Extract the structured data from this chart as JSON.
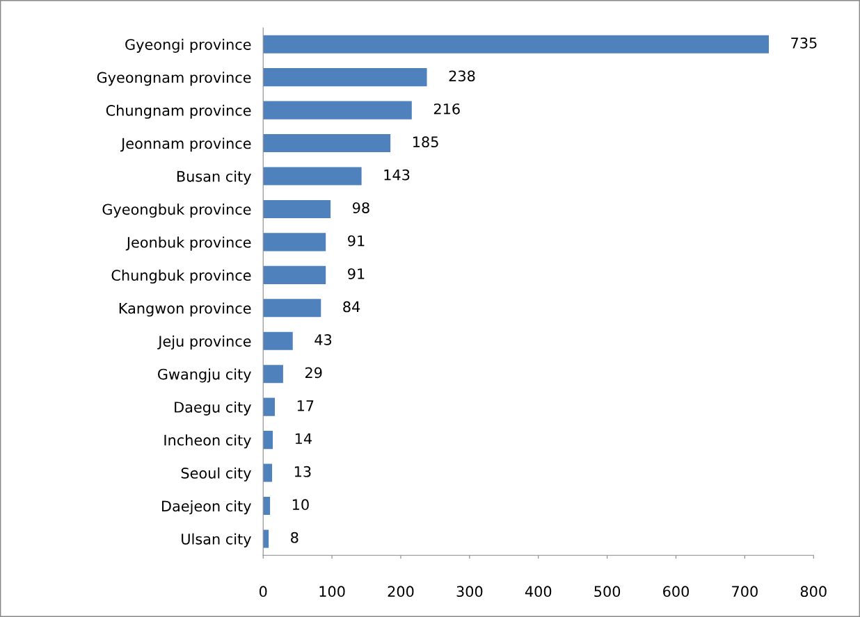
{
  "chart_data": {
    "type": "bar",
    "orientation": "horizontal",
    "categories": [
      "Gyeongi province",
      "Gyeongnam province",
      "Chungnam province",
      "Jeonnam province",
      "Busan city",
      "Gyeongbuk province",
      "Jeonbuk province",
      "Chungbuk province",
      "Kangwon province",
      "Jeju province",
      "Gwangju city",
      "Daegu city",
      "Incheon city",
      "Seoul city",
      "Daejeon city",
      "Ulsan city"
    ],
    "values": [
      735,
      238,
      216,
      185,
      143,
      98,
      91,
      91,
      84,
      43,
      29,
      17,
      14,
      13,
      10,
      8
    ],
    "color": "#4f81bd",
    "xlim": [
      0,
      800
    ],
    "xticks": [
      0,
      100,
      200,
      300,
      400,
      500,
      600,
      700,
      800
    ],
    "data_labels": true,
    "grid": false,
    "legend": false
  }
}
